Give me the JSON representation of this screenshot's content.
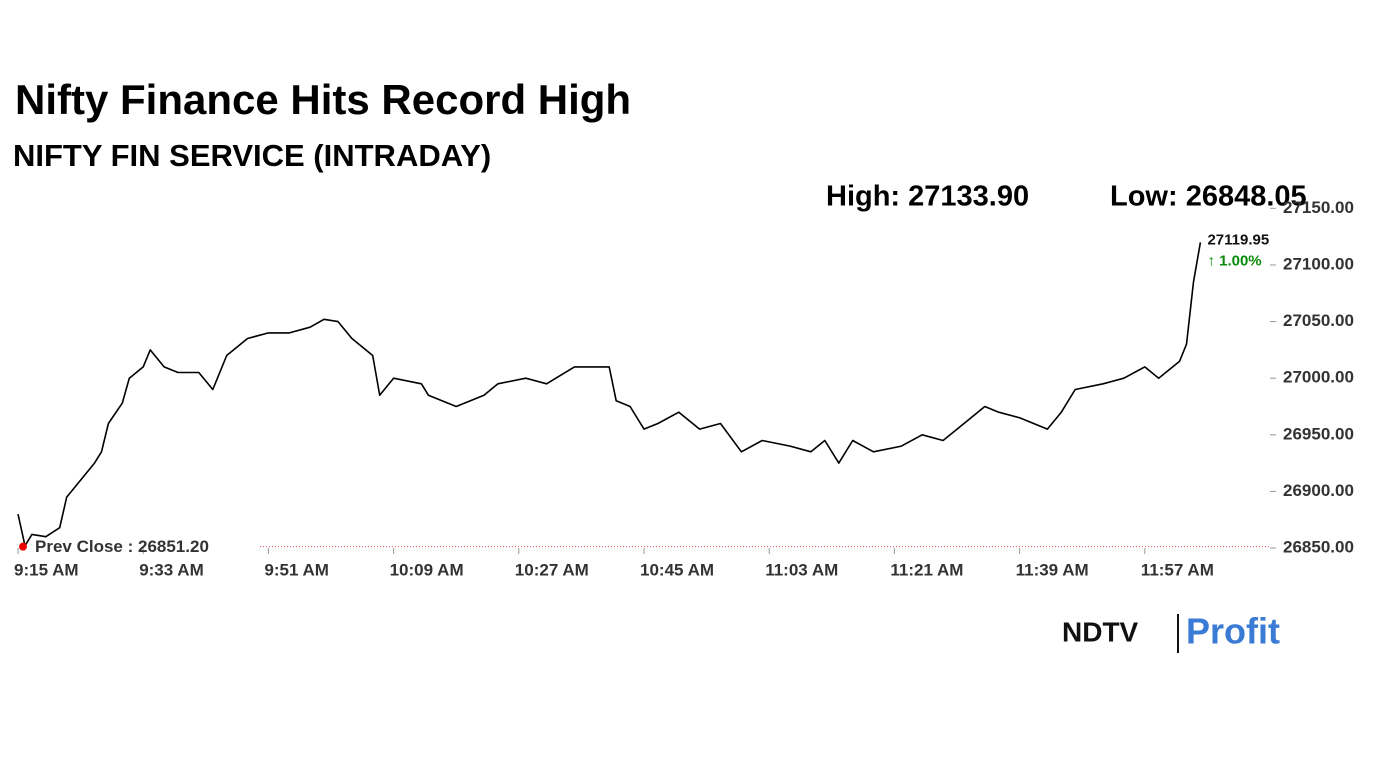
{
  "chart_data": {
    "type": "line",
    "title": "Nifty Finance Hits Record High",
    "subtitle": "NIFTY FIN SERVICE (INTRADAY)",
    "annotations": [
      "High: 27133.90",
      "Low: 26848.05",
      "27119.95",
      "↑ 1.00%"
    ],
    "prev_close": 26851.2,
    "prev_close_label": "Prev Close : 26851.20",
    "logo": [
      "NDTV",
      "Profit"
    ],
    "x": [
      "9:15 AM",
      "9:16 AM",
      "9:17 AM",
      "9:19 AM",
      "9:21 AM",
      "9:22 AM",
      "9:24 AM",
      "9:26 AM",
      "9:27 AM",
      "9:28 AM",
      "9:30 AM",
      "9:31 AM",
      "9:33 AM",
      "9:34 AM",
      "9:36 AM",
      "9:38 AM",
      "9:41 AM",
      "9:43 AM",
      "9:45 AM",
      "9:48 AM",
      "9:51 AM",
      "9:54 AM",
      "9:57 AM",
      "9:59 AM",
      "10:01 AM",
      "10:03 AM",
      "10:06 AM",
      "10:07 AM",
      "10:09 AM",
      "10:13 AM",
      "10:14 AM",
      "10:18 AM",
      "10:22 AM",
      "10:24 AM",
      "10:28 AM",
      "10:31 AM",
      "10:35 AM",
      "10:37 AM",
      "10:40 AM",
      "10:41 AM",
      "10:43 AM",
      "10:45 AM",
      "10:47 AM",
      "10:50 AM",
      "10:53 AM",
      "10:56 AM",
      "10:59 AM",
      "11:02 AM",
      "11:06 AM",
      "11:09 AM",
      "11:11 AM",
      "11:13 AM",
      "11:15 AM",
      "11:18 AM",
      "11:22 AM",
      "11:25 AM",
      "11:28 AM",
      "11:31 AM",
      "11:34 AM",
      "11:36 AM",
      "11:39 AM",
      "11:43 AM",
      "11:45 AM",
      "11:47 AM",
      "11:51 AM",
      "11:54 AM",
      "11:57 AM",
      "11:59 AM",
      "12:02 PM",
      "12:03 PM",
      "12:04 PM",
      "12:05 PM"
    ],
    "series": [
      {
        "name": "NIFTY FIN SERVICE",
        "color": "#000000",
        "values": [
          26880,
          26852,
          26862,
          26860,
          26868,
          26895,
          26910,
          26925,
          26935,
          26960,
          26978,
          27000,
          27010,
          27025,
          27010,
          27005,
          27005,
          26990,
          27020,
          27035,
          27040,
          27040,
          27045,
          27052,
          27050,
          27035,
          27020,
          26985,
          27000,
          26995,
          26985,
          26975,
          26985,
          26995,
          27000,
          26995,
          27010,
          27010,
          27010,
          26980,
          26975,
          26955,
          26960,
          26970,
          26955,
          26960,
          26935,
          26945,
          26940,
          26935,
          26945,
          26925,
          26945,
          26935,
          26940,
          26950,
          26945,
          26960,
          26975,
          26970,
          26965,
          26955,
          26970,
          26990,
          26995,
          27000,
          27010,
          27000,
          27015,
          27030,
          27085,
          27119.95
        ]
      }
    ],
    "xlim": [
      "9:15 AM",
      "12:15 PM"
    ],
    "xticks": [
      "9:15 AM",
      "9:33 AM",
      "9:51 AM",
      "10:09 AM",
      "10:27 AM",
      "10:45 AM",
      "11:03 AM",
      "11:21 AM",
      "11:39 AM",
      "11:57 AM"
    ],
    "ylim": [
      26845,
      27160
    ],
    "yticks": [
      {
        "value": 26850,
        "label": "26850.00"
      },
      {
        "value": 26900,
        "label": "26900.00"
      },
      {
        "value": 26950,
        "label": "26950.00"
      },
      {
        "value": 27000,
        "label": "27000.00"
      },
      {
        "value": 27050,
        "label": "27050.00"
      },
      {
        "value": 27100,
        "label": "27100.00"
      },
      {
        "value": 27150,
        "label": "27150.00"
      }
    ],
    "grid": false
  }
}
